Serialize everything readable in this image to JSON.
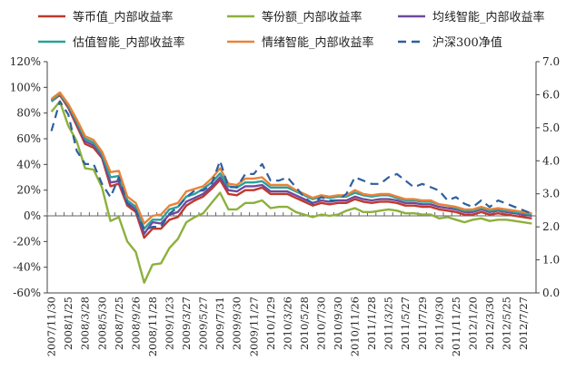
{
  "chart_data": {
    "type": "line",
    "dates": [
      "2007/11/30",
      "2007/12/31",
      "2008/1/25",
      "2008/2/29",
      "2008/3/28",
      "2008/4/30",
      "2008/5/30",
      "2008/6/30",
      "2008/7/25",
      "2008/8/29",
      "2008/9/26",
      "2008/10/31",
      "2008/11/28",
      "2008/12/31",
      "2009/1/23",
      "2009/2/27",
      "2009/3/27",
      "2009/4/30",
      "2009/5/27",
      "2009/6/30",
      "2009/7/31",
      "2009/8/31",
      "2009/9/30",
      "2009/10/30",
      "2009/11/27",
      "2009/12/31",
      "2010/1/29",
      "2010/2/26",
      "2010/3/26",
      "2010/4/30",
      "2010/5/28",
      "2010/6/30",
      "2010/7/30",
      "2010/8/31",
      "2010/9/30",
      "2010/10/29",
      "2010/11/26",
      "2010/12/31",
      "2011/1/28",
      "2011/2/25",
      "2011/3/25",
      "2011/4/29",
      "2011/5/27",
      "2011/6/30",
      "2011/7/29",
      "2011/8/31",
      "2011/9/30",
      "2011/10/31",
      "2011/11/25",
      "2011/12/30",
      "2012/1/20",
      "2012/2/29",
      "2012/3/30",
      "2012/4/27",
      "2012/5/25",
      "2012/6/29",
      "2012/7/27",
      "2012/8/31"
    ],
    "x_tick_labels": [
      "2007/11/30",
      "2008/1/25",
      "2008/3/28",
      "2008/5/30",
      "2008/7/25",
      "2008/9/26",
      "2008/11/28",
      "2009/1/23",
      "2009/3/27",
      "2009/5/27",
      "2009/7/31",
      "2009/9/30",
      "2009/11/27",
      "2010/1/29",
      "2010/3/26",
      "2010/5/28",
      "2010/7/30",
      "2010/9/30",
      "2010/11/26",
      "2011/1/28",
      "2011/3/25",
      "2011/5/27",
      "2011/7/29",
      "2011/9/30",
      "2011/11/25",
      "2012/1/20",
      "2012/3/30",
      "2012/5/25",
      "2012/7/27"
    ],
    "left_axis": {
      "ylim": [
        -60,
        120
      ],
      "ticks": [
        "120%",
        "100%",
        "80%",
        "60%",
        "40%",
        "20%",
        "0%",
        "-20%",
        "-40%",
        "-60%"
      ]
    },
    "right_axis": {
      "ylim": [
        0,
        7
      ],
      "ticks": [
        "7.0",
        "6.0",
        "5.0",
        "4.0",
        "3.0",
        "2.0",
        "1.0",
        "0.0"
      ]
    },
    "legend_position": "top",
    "grid": false,
    "series": [
      {
        "name": "等币值_内部收益率",
        "axis": "left",
        "color": "#c0392b",
        "dash": false,
        "values": [
          89,
          94,
          84,
          70,
          56,
          53,
          45,
          23,
          25,
          8,
          3,
          -17,
          -10,
          -10,
          -3,
          -1,
          8,
          12,
          15,
          21,
          28,
          17,
          16,
          20,
          20,
          22,
          17,
          17,
          17,
          14,
          11,
          8,
          10,
          9,
          10,
          10,
          13,
          11,
          10,
          11,
          11,
          10,
          8,
          8,
          7,
          7,
          5,
          4,
          3,
          1,
          1,
          3,
          1,
          2,
          1,
          0,
          -1,
          -2
        ]
      },
      {
        "name": "等份额_内部收益率",
        "axis": "left",
        "color": "#8db03c",
        "dash": false,
        "values": [
          81,
          89,
          70,
          58,
          37,
          36,
          22,
          -4,
          -1,
          -20,
          -28,
          -52,
          -38,
          -37,
          -25,
          -18,
          -5,
          -1,
          2,
          10,
          18,
          5,
          5,
          10,
          10,
          12,
          6,
          7,
          7,
          3,
          1,
          -1,
          1,
          0,
          1,
          4,
          6,
          3,
          3,
          4,
          5,
          4,
          2,
          2,
          1,
          1,
          -2,
          -1,
          -3,
          -5,
          -3,
          -2,
          -4,
          -3,
          -3,
          -4,
          -5,
          -6
        ]
      },
      {
        "name": "均线智能_内部收益率",
        "axis": "left",
        "color": "#6e4a9e",
        "dash": false,
        "values": [
          90,
          95,
          85,
          72,
          58,
          55,
          46,
          26,
          27,
          10,
          5,
          -14,
          -5,
          -6,
          1,
          3,
          11,
          14,
          17,
          23,
          30,
          20,
          19,
          23,
          23,
          24,
          19,
          19,
          19,
          16,
          13,
          10,
          12,
          11,
          12,
          12,
          15,
          13,
          12,
          13,
          13,
          12,
          10,
          10,
          9,
          9,
          7,
          6,
          5,
          3,
          3,
          5,
          3,
          4,
          3,
          2,
          1,
          0
        ]
      },
      {
        "name": "估值智能_内部收益率",
        "axis": "left",
        "color": "#2aa198",
        "dash": false,
        "values": [
          89,
          95,
          86,
          73,
          60,
          57,
          48,
          30,
          31,
          12,
          7,
          -10,
          -3,
          -3,
          5,
          7,
          15,
          17,
          21,
          26,
          33,
          23,
          22,
          26,
          26,
          27,
          22,
          22,
          22,
          19,
          16,
          13,
          15,
          14,
          15,
          15,
          18,
          16,
          15,
          16,
          16,
          14,
          12,
          12,
          11,
          11,
          9,
          8,
          6,
          4,
          4,
          6,
          4,
          5,
          4,
          3,
          2,
          1
        ]
      },
      {
        "name": "情绪智能_内部收益率",
        "axis": "left",
        "color": "#e8833a",
        "dash": false,
        "values": [
          91,
          96,
          87,
          75,
          62,
          59,
          50,
          34,
          35,
          15,
          10,
          -6,
          0,
          1,
          8,
          10,
          19,
          21,
          23,
          29,
          37,
          25,
          24,
          29,
          29,
          30,
          24,
          24,
          24,
          20,
          17,
          14,
          16,
          15,
          16,
          16,
          20,
          17,
          16,
          17,
          17,
          15,
          13,
          13,
          12,
          12,
          9,
          8,
          7,
          5,
          5,
          7,
          5,
          6,
          5,
          4,
          3,
          2
        ]
      },
      {
        "name": "沪深300净值",
        "axis": "right",
        "color": "#2e5f9e",
        "dash": true,
        "values": [
          4.9,
          5.8,
          5.4,
          4.3,
          3.9,
          3.9,
          3.3,
          2.9,
          3.5,
          2.7,
          2.5,
          1.9,
          2.0,
          2.0,
          2.4,
          2.6,
          2.9,
          3.1,
          3.1,
          3.3,
          4.0,
          3.2,
          3.2,
          3.6,
          3.6,
          3.9,
          3.4,
          3.4,
          3.5,
          3.2,
          2.9,
          2.7,
          2.9,
          2.8,
          2.8,
          3.0,
          3.5,
          3.4,
          3.3,
          3.3,
          3.5,
          3.6,
          3.4,
          3.2,
          3.3,
          3.2,
          3.1,
          2.8,
          2.9,
          2.7,
          2.6,
          2.8,
          2.6,
          2.8,
          2.7,
          2.6,
          2.5,
          2.4
        ]
      }
    ]
  }
}
